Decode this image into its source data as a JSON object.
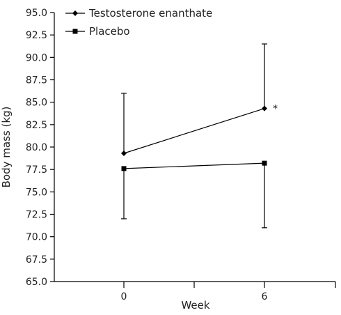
{
  "chart_data": {
    "type": "line",
    "xlabel": "Week",
    "ylabel": "Body mass (kg)",
    "ylim": [
      65.0,
      95.0
    ],
    "yticks": [
      "65.0",
      "67.5",
      "70.0",
      "72.5",
      "75.0",
      "77.5",
      "80.0",
      "82.5",
      "85.0",
      "87.5",
      "90.0",
      "92.5",
      "95.0"
    ],
    "xticks": [
      "0",
      "6"
    ],
    "x": [
      0,
      6
    ],
    "grid": false,
    "legend_position": "top-left",
    "series": [
      {
        "name": "Testosterone enanthate",
        "marker": "diamond",
        "values": [
          79.3,
          84.3
        ],
        "error_upper": [
          86.0,
          91.5
        ],
        "error_lower": [
          null,
          null
        ],
        "annotations": [
          "",
          "*"
        ]
      },
      {
        "name": "Placebo",
        "marker": "square",
        "values": [
          77.6,
          78.2
        ],
        "error_upper": [
          null,
          null
        ],
        "error_lower": [
          72.0,
          71.0
        ],
        "annotations": [
          "",
          ""
        ]
      }
    ]
  }
}
